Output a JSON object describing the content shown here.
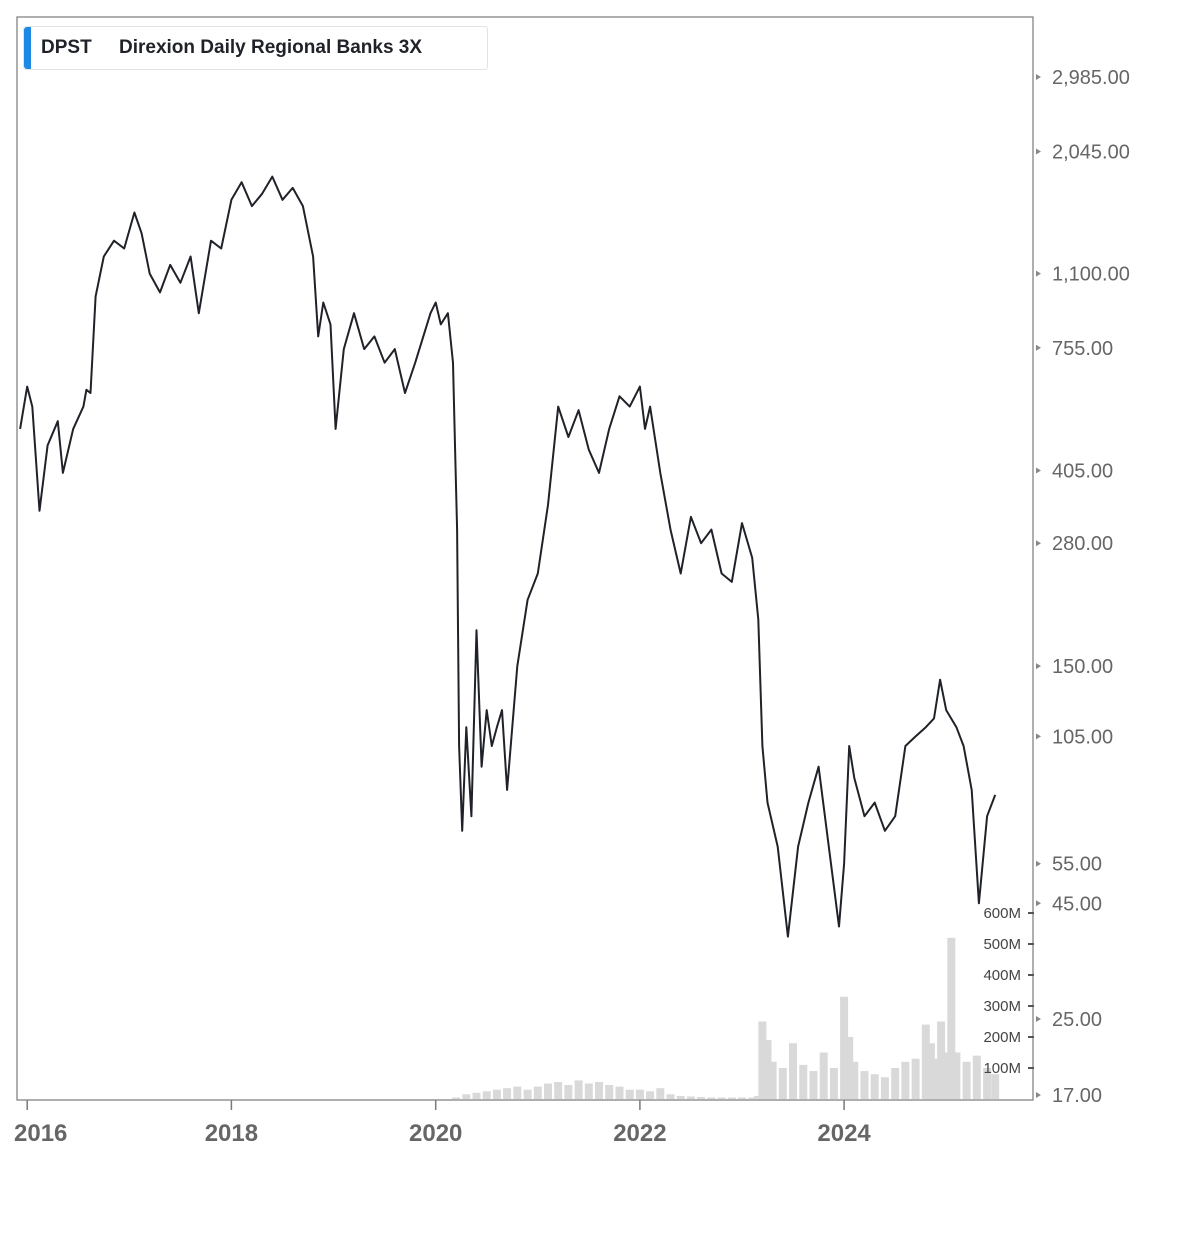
{
  "chart_data": {
    "type": "line",
    "legend": {
      "ticker": "DPST",
      "name": "Direxion Daily Regional Banks 3X",
      "placement": "top-left"
    },
    "price_axis": {
      "scale": "log",
      "ticks": [
        2985,
        2045,
        1100,
        755,
        405,
        280,
        150,
        105,
        55,
        45,
        25,
        17
      ],
      "tick_labels": [
        "2,985.00",
        "2,045.00",
        "1,100.00",
        "755.00",
        "405.00",
        "280.00",
        "150.00",
        "105.00",
        "55.00",
        "45.00",
        "25.00",
        "17.00"
      ]
    },
    "volume_axis": {
      "ticks": [
        600,
        500,
        400,
        300,
        200,
        100
      ],
      "tick_labels": [
        "600M",
        "500M",
        "400M",
        "300M",
        "200M",
        "100M"
      ],
      "unit": "M"
    },
    "x_axis": {
      "tick_labels": [
        "2016",
        "2018",
        "2020",
        "2022",
        "2024"
      ],
      "tick_years": [
        2016,
        2018,
        2020,
        2022,
        2024
      ],
      "range": [
        2015.9,
        2025.85
      ]
    },
    "grid": false,
    "colors": {
      "line": "#1f2228",
      "volume": "#d9d9d9",
      "accent": "#1e88e5",
      "axis_text": "#666666"
    },
    "series": [
      {
        "values": [
          [
            2015.93,
            500
          ],
          [
            2016.0,
            620
          ],
          [
            2016.05,
            560
          ],
          [
            2016.12,
            330
          ],
          [
            2016.2,
            460
          ],
          [
            2016.3,
            520
          ],
          [
            2016.35,
            400
          ],
          [
            2016.45,
            500
          ],
          [
            2016.55,
            560
          ],
          [
            2016.58,
            610
          ],
          [
            2016.62,
            600
          ],
          [
            2016.67,
            980
          ],
          [
            2016.75,
            1200
          ],
          [
            2016.85,
            1300
          ],
          [
            2016.95,
            1250
          ],
          [
            2017.05,
            1500
          ],
          [
            2017.12,
            1350
          ],
          [
            2017.2,
            1100
          ],
          [
            2017.3,
            1000
          ],
          [
            2017.4,
            1150
          ],
          [
            2017.5,
            1050
          ],
          [
            2017.6,
            1200
          ],
          [
            2017.68,
            900
          ],
          [
            2017.8,
            1300
          ],
          [
            2017.9,
            1250
          ],
          [
            2018.0,
            1600
          ],
          [
            2018.1,
            1750
          ],
          [
            2018.2,
            1550
          ],
          [
            2018.3,
            1650
          ],
          [
            2018.4,
            1800
          ],
          [
            2018.5,
            1600
          ],
          [
            2018.6,
            1700
          ],
          [
            2018.7,
            1550
          ],
          [
            2018.8,
            1200
          ],
          [
            2018.85,
            800
          ],
          [
            2018.9,
            950
          ],
          [
            2018.97,
            850
          ],
          [
            2019.02,
            500
          ],
          [
            2019.1,
            750
          ],
          [
            2019.2,
            900
          ],
          [
            2019.3,
            750
          ],
          [
            2019.4,
            800
          ],
          [
            2019.5,
            700
          ],
          [
            2019.6,
            750
          ],
          [
            2019.7,
            600
          ],
          [
            2019.8,
            700
          ],
          [
            2019.95,
            900
          ],
          [
            2020.0,
            950
          ],
          [
            2020.05,
            850
          ],
          [
            2020.12,
            900
          ],
          [
            2020.17,
            700
          ],
          [
            2020.19,
            450
          ],
          [
            2020.21,
            300
          ],
          [
            2020.23,
            100
          ],
          [
            2020.26,
            65
          ],
          [
            2020.3,
            110
          ],
          [
            2020.35,
            70
          ],
          [
            2020.4,
            180
          ],
          [
            2020.45,
            90
          ],
          [
            2020.5,
            120
          ],
          [
            2020.55,
            100
          ],
          [
            2020.6,
            110
          ],
          [
            2020.65,
            120
          ],
          [
            2020.7,
            80
          ],
          [
            2020.8,
            150
          ],
          [
            2020.9,
            210
          ],
          [
            2021.0,
            240
          ],
          [
            2021.1,
            340
          ],
          [
            2021.2,
            560
          ],
          [
            2021.3,
            480
          ],
          [
            2021.4,
            550
          ],
          [
            2021.5,
            450
          ],
          [
            2021.6,
            400
          ],
          [
            2021.7,
            500
          ],
          [
            2021.8,
            590
          ],
          [
            2021.9,
            560
          ],
          [
            2022.0,
            620
          ],
          [
            2022.05,
            500
          ],
          [
            2022.1,
            560
          ],
          [
            2022.2,
            400
          ],
          [
            2022.3,
            300
          ],
          [
            2022.4,
            240
          ],
          [
            2022.5,
            320
          ],
          [
            2022.6,
            280
          ],
          [
            2022.7,
            300
          ],
          [
            2022.8,
            240
          ],
          [
            2022.9,
            230
          ],
          [
            2023.0,
            310
          ],
          [
            2023.1,
            260
          ],
          [
            2023.16,
            190
          ],
          [
            2023.2,
            100
          ],
          [
            2023.25,
            75
          ],
          [
            2023.35,
            60
          ],
          [
            2023.45,
            38
          ],
          [
            2023.55,
            60
          ],
          [
            2023.65,
            75
          ],
          [
            2023.75,
            90
          ],
          [
            2023.85,
            60
          ],
          [
            2023.95,
            40
          ],
          [
            2024.0,
            55
          ],
          [
            2024.05,
            100
          ],
          [
            2024.1,
            85
          ],
          [
            2024.2,
            70
          ],
          [
            2024.3,
            75
          ],
          [
            2024.4,
            65
          ],
          [
            2024.5,
            70
          ],
          [
            2024.6,
            100
          ],
          [
            2024.7,
            105
          ],
          [
            2024.8,
            110
          ],
          [
            2024.88,
            115
          ],
          [
            2024.94,
            140
          ],
          [
            2025.0,
            120
          ],
          [
            2025.1,
            110
          ],
          [
            2025.17,
            100
          ],
          [
            2025.25,
            80
          ],
          [
            2025.32,
            45
          ],
          [
            2025.4,
            70
          ],
          [
            2025.48,
            78
          ]
        ]
      }
    ],
    "volume_series_M": [
      [
        2020.2,
        5
      ],
      [
        2020.3,
        15
      ],
      [
        2020.4,
        20
      ],
      [
        2020.5,
        25
      ],
      [
        2020.6,
        30
      ],
      [
        2020.7,
        35
      ],
      [
        2020.8,
        40
      ],
      [
        2020.9,
        30
      ],
      [
        2021.0,
        40
      ],
      [
        2021.1,
        50
      ],
      [
        2021.2,
        55
      ],
      [
        2021.3,
        45
      ],
      [
        2021.4,
        60
      ],
      [
        2021.5,
        50
      ],
      [
        2021.6,
        55
      ],
      [
        2021.7,
        45
      ],
      [
        2021.8,
        40
      ],
      [
        2021.9,
        30
      ],
      [
        2022.0,
        30
      ],
      [
        2022.1,
        25
      ],
      [
        2022.2,
        35
      ],
      [
        2022.3,
        15
      ],
      [
        2022.4,
        10
      ],
      [
        2022.5,
        8
      ],
      [
        2022.6,
        6
      ],
      [
        2022.7,
        5
      ],
      [
        2022.8,
        5
      ],
      [
        2022.9,
        5
      ],
      [
        2023.0,
        5
      ],
      [
        2023.1,
        5
      ],
      [
        2023.16,
        10
      ],
      [
        2023.2,
        250
      ],
      [
        2023.25,
        190
      ],
      [
        2023.3,
        120
      ],
      [
        2023.4,
        100
      ],
      [
        2023.5,
        180
      ],
      [
        2023.6,
        110
      ],
      [
        2023.7,
        90
      ],
      [
        2023.8,
        150
      ],
      [
        2023.9,
        100
      ],
      [
        2024.0,
        330
      ],
      [
        2024.05,
        200
      ],
      [
        2024.1,
        120
      ],
      [
        2024.2,
        90
      ],
      [
        2024.3,
        80
      ],
      [
        2024.4,
        70
      ],
      [
        2024.5,
        100
      ],
      [
        2024.6,
        120
      ],
      [
        2024.7,
        130
      ],
      [
        2024.8,
        240
      ],
      [
        2024.85,
        180
      ],
      [
        2024.9,
        130
      ],
      [
        2024.95,
        250
      ],
      [
        2025.0,
        150
      ],
      [
        2025.05,
        520
      ],
      [
        2025.1,
        150
      ],
      [
        2025.2,
        120
      ],
      [
        2025.3,
        140
      ],
      [
        2025.4,
        100
      ],
      [
        2025.48,
        80
      ]
    ]
  }
}
